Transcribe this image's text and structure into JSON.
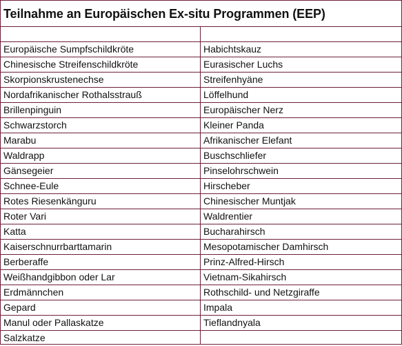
{
  "table": {
    "title": "Teilnahme an Europäischen Ex-situ Programmen (EEP)",
    "rows": [
      {
        "left": "Europäische Sumpfschildkröte",
        "right": "Habichtskauz"
      },
      {
        "left": "Chinesische Streifenschildkröte",
        "right": "Eurasischer Luchs"
      },
      {
        "left": "Skorpionskrustenechse",
        "right": "Streifenhyäne"
      },
      {
        "left": "Nordafrikanischer Rothalsstrauß",
        "right": "Löffelhund"
      },
      {
        "left": "Brillenpinguin",
        "right": "Europäischer Nerz"
      },
      {
        "left": "Schwarzstorch",
        "right": "Kleiner Panda"
      },
      {
        "left": "Marabu",
        "right": "Afrikanischer Elefant"
      },
      {
        "left": "Waldrapp",
        "right": "Buschschliefer"
      },
      {
        "left": "Gänsegeier",
        "right": "Pinselohrschwein"
      },
      {
        "left": "Schnee-Eule",
        "right": "Hirscheber"
      },
      {
        "left": "Rotes Riesenkänguru",
        "right": "Chinesischer Muntjak"
      },
      {
        "left": "Roter Vari",
        "right": "Waldrentier"
      },
      {
        "left": "Katta",
        "right": "Bucharahirsch"
      },
      {
        "left": "Kaiserschnurrbarttamarin",
        "right": "Mesopotamischer Damhirsch"
      },
      {
        "left": "Berberaffe",
        "right": "Prinz-Alfred-Hirsch"
      },
      {
        "left": "Weißhandgibbon oder Lar",
        "right": "Vietnam-Sikahirsch"
      },
      {
        "left": "Erdmännchen",
        "right": "Rothschild- und Netzgiraffe"
      },
      {
        "left": "Gepard",
        "right": "Impala"
      },
      {
        "left": "Manul oder Pallaskatze",
        "right": "Tieflandnyala"
      },
      {
        "left": "Salzkatze",
        "right": ""
      }
    ]
  }
}
